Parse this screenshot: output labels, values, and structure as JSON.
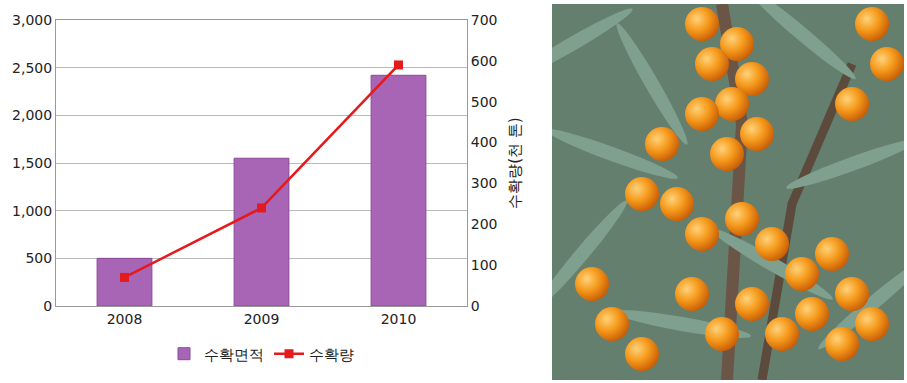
{
  "chart_data": {
    "type": "bar",
    "categories": [
      "2008",
      "2009",
      "2010"
    ],
    "series": [
      {
        "name": "수확면적",
        "type": "bar",
        "color": "#a865b5",
        "values": [
          500,
          1550,
          2420
        ]
      },
      {
        "name": "수확량",
        "type": "line",
        "color": "#e41a1c",
        "marker": "square",
        "axis": "y2",
        "values": [
          70,
          240,
          590
        ]
      }
    ],
    "ylim": [
      0,
      3000
    ],
    "yticks": [
      0,
      500,
      {
        "value": 1000,
        "label": "1,000"
      },
      {
        "value": 1500,
        "label": "1,500"
      },
      {
        "value": 2000,
        "label": "2,000"
      },
      {
        "value": 2500,
        "label": "2,500"
      },
      {
        "value": 3000,
        "label": "3,000"
      }
    ],
    "y2lim": [
      0,
      700
    ],
    "y2ticks": [
      0,
      100,
      200,
      300,
      400,
      500,
      600,
      700
    ],
    "y2label": "수확량(천 톤)",
    "grid": true,
    "legend": "bottom"
  }
}
